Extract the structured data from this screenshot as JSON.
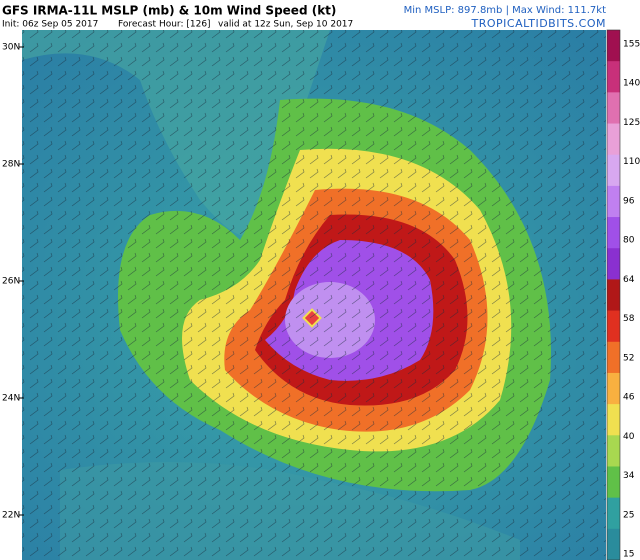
{
  "header": {
    "title": "GFS IRMA-11L MSLP (mb) & 10m Wind Speed (kt)",
    "init": "Init: 06z Sep 05 2017",
    "forecast_hour": "Forecast Hour: [126]",
    "valid": "valid at 12z Sun, Sep 10 2017",
    "stats": "Min MSLP: 897.8mb | Max Wind: 111.7kt",
    "site": "TROPICALTIDBITS.COM"
  },
  "latitude_labels": [
    "30N",
    "28N",
    "26N",
    "24N",
    "22N"
  ],
  "colorbar": {
    "labels": [
      "155",
      "140",
      "125",
      "110",
      "96",
      "80",
      "64",
      "58",
      "52",
      "46",
      "40",
      "34",
      "25",
      "15"
    ],
    "colors": [
      "#a01050",
      "#c8307a",
      "#e070b0",
      "#e9a0d8",
      "#d8a8f0",
      "#c080f0",
      "#a050e8",
      "#8a30d0",
      "#b01818",
      "#e03020",
      "#f07028",
      "#f8b040",
      "#f0e050",
      "#a8d850",
      "#60c048",
      "#30a0a0",
      "#2a8c9c"
    ]
  }
}
